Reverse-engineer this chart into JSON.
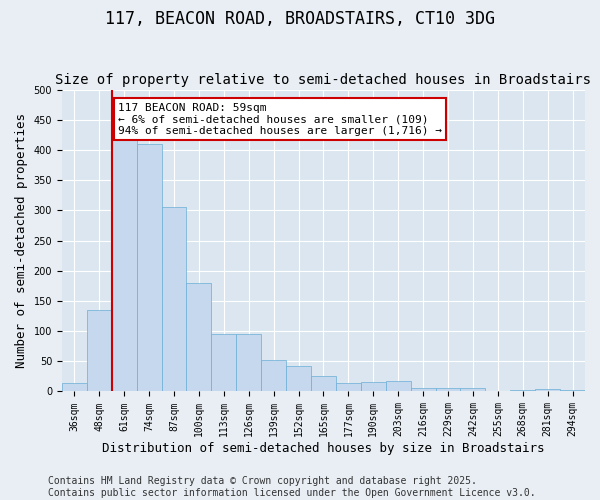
{
  "title": "117, BEACON ROAD, BROADSTAIRS, CT10 3DG",
  "subtitle": "Size of property relative to semi-detached houses in Broadstairs",
  "xlabel": "Distribution of semi-detached houses by size in Broadstairs",
  "ylabel": "Number of semi-detached properties",
  "categories": [
    "36sqm",
    "48sqm",
    "61sqm",
    "74sqm",
    "87sqm",
    "100sqm",
    "113sqm",
    "126sqm",
    "139sqm",
    "152sqm",
    "165sqm",
    "177sqm",
    "190sqm",
    "203sqm",
    "216sqm",
    "229sqm",
    "242sqm",
    "255sqm",
    "268sqm",
    "281sqm",
    "294sqm"
  ],
  "values": [
    14,
    135,
    420,
    410,
    305,
    180,
    95,
    95,
    52,
    42,
    25,
    14,
    16,
    18,
    5,
    6,
    6,
    1,
    3,
    4,
    2
  ],
  "bar_color": "#c5d8ed",
  "bar_edge_color": "#6aaed6",
  "annotation_title": "117 BEACON ROAD: 59sqm",
  "annotation_line1": "← 6% of semi-detached houses are smaller (109)",
  "annotation_line2": "94% of semi-detached houses are larger (1,716) →",
  "annotation_box_color": "#ffffff",
  "annotation_box_edge": "#cc0000",
  "vline_color": "#cc0000",
  "vline_x": 1.5,
  "ylim": [
    0,
    500
  ],
  "yticks": [
    0,
    50,
    100,
    150,
    200,
    250,
    300,
    350,
    400,
    450,
    500
  ],
  "footnote1": "Contains HM Land Registry data © Crown copyright and database right 2025.",
  "footnote2": "Contains public sector information licensed under the Open Government Licence v3.0.",
  "bg_color": "#e8eef4",
  "plot_bg_color": "#dce6f0",
  "title_fontsize": 12,
  "subtitle_fontsize": 10,
  "axis_label_fontsize": 9,
  "tick_fontsize": 7,
  "annotation_fontsize": 8,
  "footnote_fontsize": 7
}
